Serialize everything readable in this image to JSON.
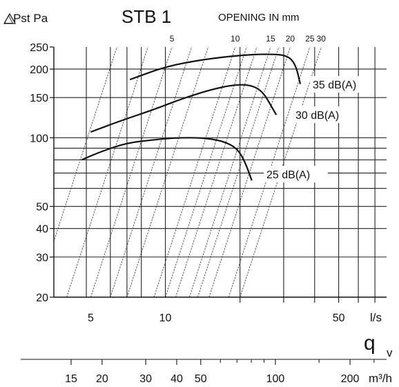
{
  "chart_data": {
    "type": "line",
    "title": "STB 1",
    "pressure_label": "△Pst  Pa",
    "opening_label": "OPENING IN mm",
    "quantity_symbol": "q",
    "quantity_subscript": "v",
    "x_unit": "l/s",
    "x_unit_secondary": "m³/h",
    "y_scale": "log",
    "x_scale": "log",
    "ylim": [
      20,
      250
    ],
    "xlim": [
      3.55,
      78
    ],
    "grid": true,
    "y_ticks": [
      {
        "value": 20,
        "label": "20"
      },
      {
        "value": 30,
        "label": "30"
      },
      {
        "value": 40,
        "label": "40"
      },
      {
        "value": 50,
        "label": "50"
      },
      {
        "value": 100,
        "label": "100"
      },
      {
        "value": 150,
        "label": "150"
      },
      {
        "value": 200,
        "label": "200"
      },
      {
        "value": 250,
        "label": "250"
      }
    ],
    "x_ticks": [
      {
        "value": 5,
        "label": "5"
      },
      {
        "value": 10,
        "label": "10"
      },
      {
        "value": 50,
        "label": "50"
      }
    ],
    "x_gridlines": [
      4.8,
      6,
      7,
      8,
      10,
      20,
      30,
      40,
      50,
      60,
      70
    ],
    "y_gridlines": [
      20,
      30,
      40,
      50,
      60,
      70,
      80,
      90,
      100,
      150,
      200
    ],
    "secondary_x_ticks": [
      {
        "value": 15,
        "label": "15"
      },
      {
        "value": 20,
        "label": "20"
      },
      {
        "value": 30,
        "label": "30"
      },
      {
        "value": 40,
        "label": "40"
      },
      {
        "value": 50,
        "label": "50"
      },
      {
        "value": 100,
        "label": "100"
      },
      {
        "value": 200,
        "label": "200"
      }
    ],
    "secondary_x_minor": [
      60,
      70,
      80,
      90,
      150,
      250
    ],
    "opening_lines": [
      {
        "label": "",
        "x_at_bottom": 3.0
      },
      {
        "label": "",
        "x_at_bottom": 4.0
      },
      {
        "label": "5",
        "x_at_bottom": 5.0
      },
      {
        "label": "",
        "x_at_bottom": 6.0
      },
      {
        "label": "",
        "x_at_bottom": 7.0
      },
      {
        "label": "10",
        "x_at_bottom": 9.0
      },
      {
        "label": "",
        "x_at_bottom": 10.0
      },
      {
        "label": "",
        "x_at_bottom": 11.0
      },
      {
        "label": "15",
        "x_at_bottom": 12.5
      },
      {
        "label": "",
        "x_at_bottom": 13.5
      },
      {
        "label": "20",
        "x_at_bottom": 15.0
      },
      {
        "label": "25",
        "x_at_bottom": 18.0
      },
      {
        "label": "30",
        "x_at_bottom": 20.0
      }
    ],
    "series": [
      {
        "name": "25 dB(A)",
        "x": [
          4.6,
          5.5,
          7,
          9,
          11,
          14,
          17,
          19.5,
          21,
          22.3
        ],
        "y": [
          80,
          87,
          95,
          98,
          100,
          100,
          97,
          90,
          78,
          65
        ]
      },
      {
        "name": "30 dB(A)",
        "x": [
          5.0,
          6.5,
          9,
          12,
          16,
          20,
          23,
          25,
          26.5,
          28
        ],
        "y": [
          106,
          118,
          133,
          150,
          165,
          172,
          168,
          156,
          140,
          126
        ]
      },
      {
        "name": "35 dB(A)",
        "x": [
          7.2,
          10,
          14,
          20,
          26,
          31,
          33.5,
          35
        ],
        "y": [
          180,
          205,
          220,
          230,
          233,
          230,
          210,
          172
        ]
      }
    ]
  }
}
